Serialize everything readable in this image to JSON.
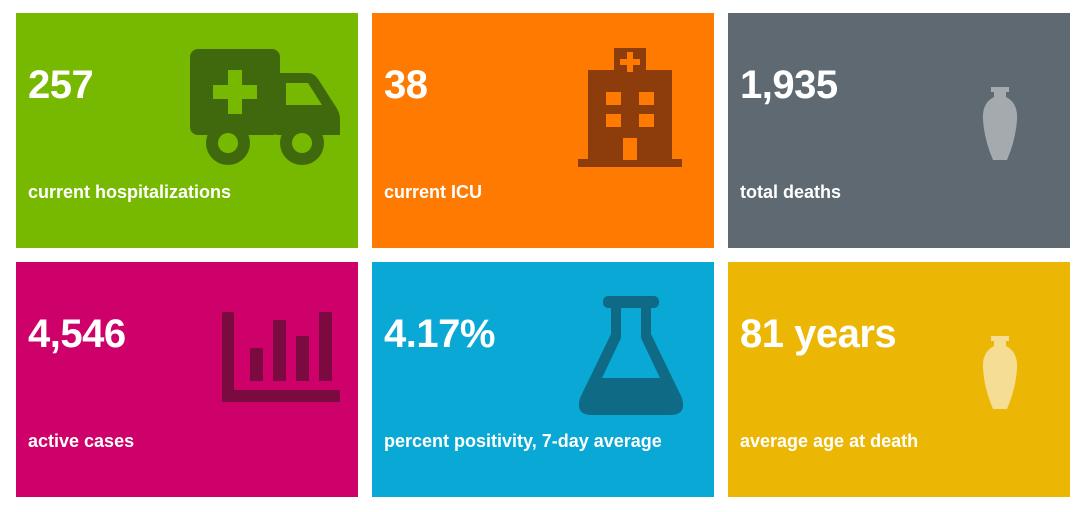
{
  "colors": {
    "green": "#77B900",
    "orange": "#FF7A00",
    "slate": "#5E6972",
    "magenta": "#CE0069",
    "blue": "#0AA8D4",
    "gold": "#EBB604"
  },
  "tiles": [
    {
      "value": "257",
      "label": "current hospitalizations",
      "icon": "ambulance-icon"
    },
    {
      "value": "38",
      "label": "current ICU",
      "icon": "hospital-icon"
    },
    {
      "value": "1,935",
      "label": "total deaths",
      "icon": "urn-icon"
    },
    {
      "value": "4,546",
      "label": "active cases",
      "icon": "bar-chart-icon"
    },
    {
      "value": "4.17%",
      "label": "percent positivity, 7-day average",
      "icon": "flask-icon"
    },
    {
      "value": "81 years",
      "label": "average age at death",
      "icon": "urn-icon"
    }
  ]
}
